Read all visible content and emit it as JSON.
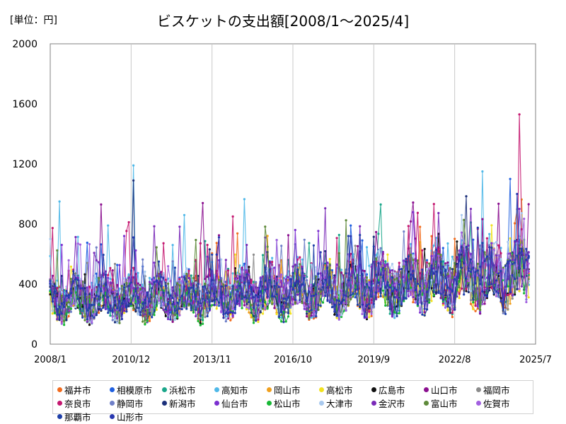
{
  "chart_data": {
    "type": "line",
    "title": "ビスケットの支出額[2008/1～2025/4]",
    "unit_label": "[単位：円]",
    "xlabel": "",
    "ylabel": "",
    "x_start": "2008/1",
    "x_end": "2025/4",
    "x_ticks": [
      "2008/1",
      "2010/12",
      "2013/11",
      "2016/10",
      "2019/9",
      "2022/8",
      "2025/7"
    ],
    "ylim": [
      0,
      2000
    ],
    "y_ticks": [
      0,
      400,
      800,
      1200,
      1600,
      2000
    ],
    "grid": "vertical",
    "legend_position": "bottom",
    "series": [
      {
        "name": "福井市",
        "color": "#F26B1D",
        "base": 280,
        "trend": 1.55,
        "amp": 120,
        "seed": 11,
        "peaks": []
      },
      {
        "name": "相模原市",
        "color": "#1F5FE0",
        "base": 300,
        "trend": 1.6,
        "amp": 120,
        "seed": 12,
        "peaks": [
          [
            2024.6,
            1100
          ]
        ]
      },
      {
        "name": "浜松市",
        "color": "#1AA68A",
        "base": 290,
        "trend": 1.55,
        "amp": 120,
        "seed": 13,
        "peaks": []
      },
      {
        "name": "高知市",
        "color": "#4FB8E8",
        "base": 310,
        "trend": 1.55,
        "amp": 140,
        "seed": 14,
        "peaks": [
          [
            2008.3,
            950
          ],
          [
            2011.0,
            1190
          ],
          [
            2023.6,
            1150
          ],
          [
            2015.0,
            965
          ]
        ]
      },
      {
        "name": "岡山市",
        "color": "#F0A01E",
        "base": 280,
        "trend": 1.55,
        "amp": 110,
        "seed": 15,
        "peaks": []
      },
      {
        "name": "高松市",
        "color": "#F2E21E",
        "base": 270,
        "trend": 1.6,
        "amp": 110,
        "seed": 16,
        "peaks": []
      },
      {
        "name": "広島市",
        "color": "#111111",
        "base": 260,
        "trend": 1.6,
        "amp": 100,
        "seed": 17,
        "peaks": []
      },
      {
        "name": "山口市",
        "color": "#8B0F8F",
        "base": 300,
        "trend": 1.55,
        "amp": 130,
        "seed": 18,
        "peaks": [
          [
            2009.8,
            930
          ],
          [
            2013.5,
            940
          ]
        ]
      },
      {
        "name": "福岡市",
        "color": "#8C8C8C",
        "base": 290,
        "trend": 1.55,
        "amp": 110,
        "seed": 19,
        "peaks": []
      },
      {
        "name": "奈良市",
        "color": "#C4166F",
        "base": 310,
        "trend": 1.55,
        "amp": 130,
        "seed": 20,
        "peaks": [
          [
            2024.9,
            1530
          ],
          [
            2014.6,
            850
          ]
        ]
      },
      {
        "name": "静岡市",
        "color": "#6E7FC8",
        "base": 290,
        "trend": 1.55,
        "amp": 120,
        "seed": 21,
        "peaks": []
      },
      {
        "name": "新潟市",
        "color": "#1B2F7A",
        "base": 280,
        "trend": 1.6,
        "amp": 110,
        "seed": 22,
        "peaks": [
          [
            2011.0,
            1090
          ],
          [
            2023.0,
            985
          ]
        ]
      },
      {
        "name": "仙台市",
        "color": "#7B2FD0",
        "base": 290,
        "trend": 1.55,
        "amp": 120,
        "seed": 23,
        "peaks": [
          [
            2010.7,
            720
          ]
        ]
      },
      {
        "name": "松山市",
        "color": "#17B835",
        "base": 250,
        "trend": 1.6,
        "amp": 100,
        "seed": 24,
        "peaks": []
      },
      {
        "name": "大津市",
        "color": "#A9C9EE",
        "base": 300,
        "trend": 1.55,
        "amp": 120,
        "seed": 25,
        "peaks": [
          [
            2022.8,
            860
          ]
        ]
      },
      {
        "name": "金沢市",
        "color": "#7A2AB8",
        "base": 300,
        "trend": 1.55,
        "amp": 120,
        "seed": 26,
        "peaks": [
          [
            2017.9,
            905
          ],
          [
            2019.2,
            785
          ]
        ]
      },
      {
        "name": "富山市",
        "color": "#5E8A3A",
        "base": 290,
        "trend": 1.55,
        "amp": 120,
        "seed": 27,
        "peaks": [
          [
            2018.7,
            825
          ]
        ]
      },
      {
        "name": "佐賀市",
        "color": "#A260E0",
        "base": 280,
        "trend": 1.55,
        "amp": 110,
        "seed": 28,
        "peaks": []
      },
      {
        "name": "那覇市",
        "color": "#1E3FA8",
        "base": 270,
        "trend": 1.6,
        "amp": 110,
        "seed": 29,
        "peaks": []
      },
      {
        "name": "山形市",
        "color": "#2837B0",
        "base": 280,
        "trend": 1.6,
        "amp": 110,
        "seed": 30,
        "peaks": [
          [
            2024.8,
            1000
          ]
        ]
      }
    ]
  }
}
